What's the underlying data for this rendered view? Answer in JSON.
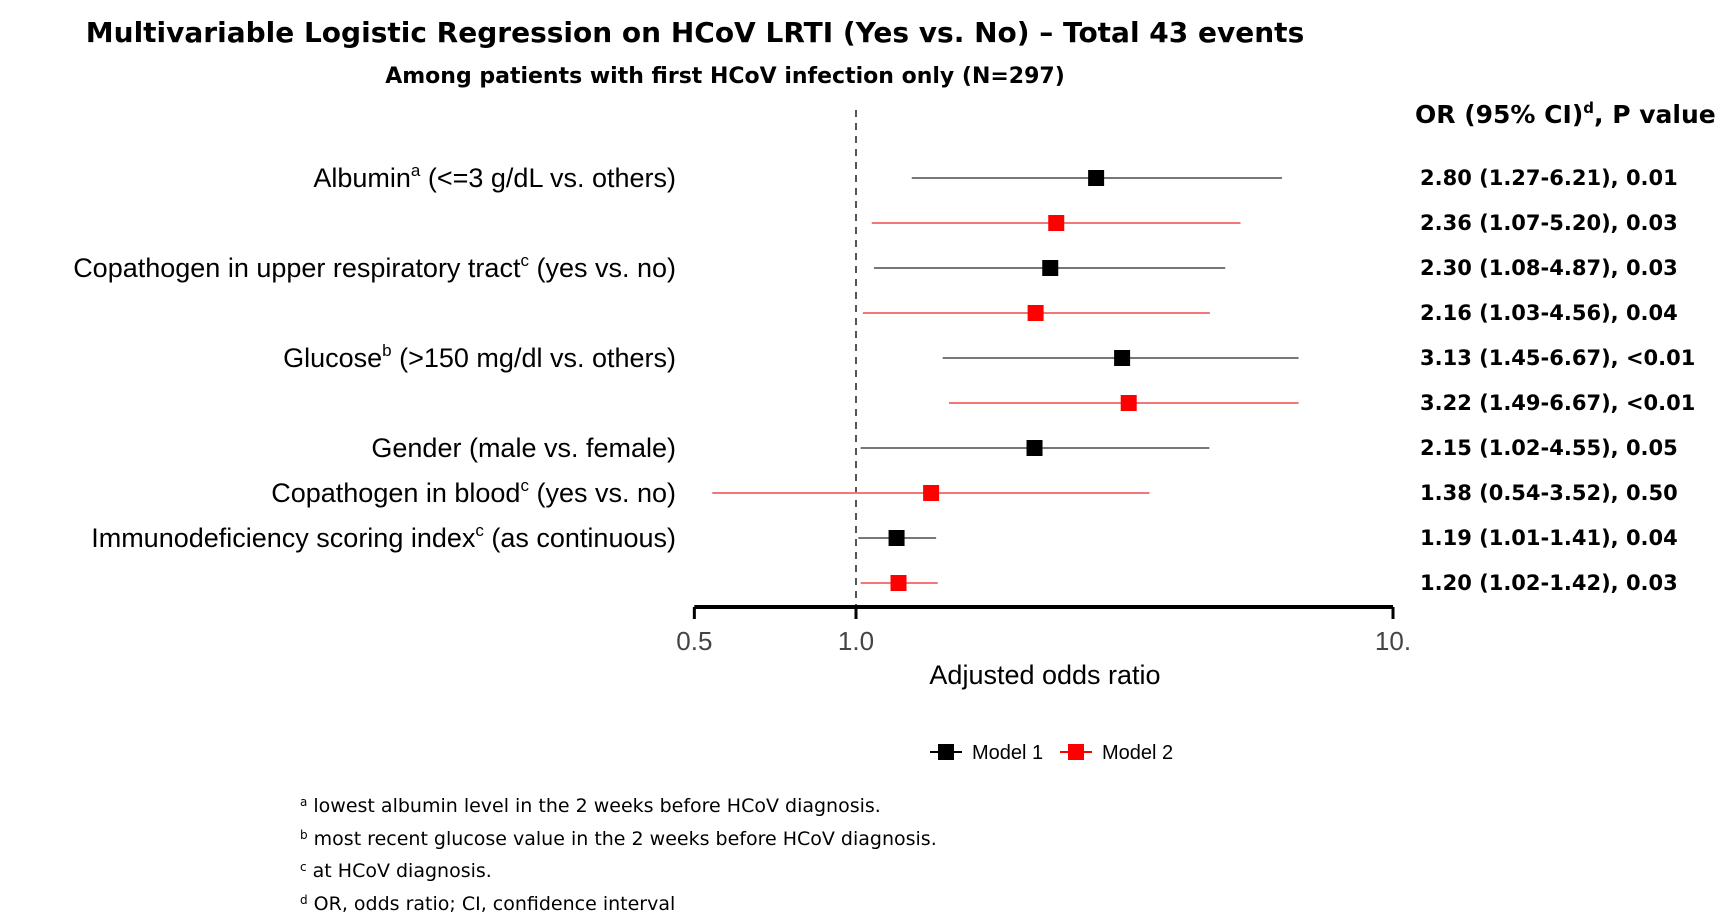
{
  "title": "Multivariable Logistic Regression on HCoV LRTI (Yes vs. No) – Total 43 events",
  "subtitle": "Among patients with first HCoV infection only (N=297)",
  "or_header": {
    "main": "OR (95% CI)",
    "sup": "d",
    "tail": ", P value"
  },
  "colors": {
    "model1": "#000000",
    "model2": "#ff0000",
    "model1_line": "#777777",
    "model2_line": "#f07878"
  },
  "variables": [
    {
      "name": "Albumin",
      "sup": "a",
      "rest": " (<=3 g/dL vs. others)"
    },
    {
      "name": "Copathogen in upper respiratory tract",
      "sup": "c",
      "rest": " (yes vs. no)"
    },
    {
      "name": "Glucose",
      "sup": "b",
      "rest": " (>150 mg/dl vs. others)"
    },
    {
      "name": "Gender (male vs. female)",
      "sup": "",
      "rest": ""
    },
    {
      "name": "Copathogen in blood",
      "sup": "c",
      "rest": " (yes vs. no)"
    },
    {
      "name": "Immunodeficiency scoring index",
      "sup": "c",
      "rest": " (as continuous)"
    }
  ],
  "chart_data": {
    "type": "forest",
    "xlabel": "Adjusted odds ratio",
    "xscale": "log",
    "xlim": [
      0.5,
      10
    ],
    "xticks": [
      0.5,
      1.0,
      10
    ],
    "xtick_labels": [
      "0.5",
      "1.0",
      "10."
    ],
    "reference_line": 1.0,
    "legend": {
      "position": "bottom",
      "entries": [
        "Model 1",
        "Model 2"
      ]
    },
    "rows": [
      {
        "variable": 0,
        "model": "Model 1",
        "or": 2.8,
        "lo": 1.27,
        "hi": 6.21,
        "label": "2.80 (1.27-6.21), 0.01"
      },
      {
        "variable": 0,
        "model": "Model 2",
        "or": 2.36,
        "lo": 1.07,
        "hi": 5.2,
        "label": "2.36 (1.07-5.20), 0.03"
      },
      {
        "variable": 1,
        "model": "Model 1",
        "or": 2.3,
        "lo": 1.08,
        "hi": 4.87,
        "label": "2.30 (1.08-4.87), 0.03"
      },
      {
        "variable": 1,
        "model": "Model 2",
        "or": 2.16,
        "lo": 1.03,
        "hi": 4.56,
        "label": "2.16 (1.03-4.56), 0.04"
      },
      {
        "variable": 2,
        "model": "Model 1",
        "or": 3.13,
        "lo": 1.45,
        "hi": 6.67,
        "label": "3.13 (1.45-6.67), <0.01"
      },
      {
        "variable": 2,
        "model": "Model 2",
        "or": 3.22,
        "lo": 1.49,
        "hi": 6.67,
        "label": "3.22 (1.49-6.67), <0.01"
      },
      {
        "variable": 3,
        "model": "Model 1",
        "or": 2.15,
        "lo": 1.02,
        "hi": 4.55,
        "label": "2.15 (1.02-4.55), 0.05"
      },
      {
        "variable": 4,
        "model": "Model 2",
        "or": 1.38,
        "lo": 0.54,
        "hi": 3.52,
        "label": "1.38 (0.54-3.52), 0.50"
      },
      {
        "variable": 5,
        "model": "Model 1",
        "or": 1.19,
        "lo": 1.01,
        "hi": 1.41,
        "label": "1.19 (1.01-1.41), 0.04"
      },
      {
        "variable": 5,
        "model": "Model 2",
        "or": 1.2,
        "lo": 1.02,
        "hi": 1.42,
        "label": "1.20 (1.02-1.42), 0.03"
      }
    ]
  },
  "footnotes": [
    {
      "mark": "a",
      "text": " lowest albumin level in the 2 weeks before HCoV diagnosis."
    },
    {
      "mark": "b",
      "text": " most recent glucose value in the 2 weeks before HCoV diagnosis."
    },
    {
      "mark": "c",
      "text": " at HCoV diagnosis."
    },
    {
      "mark": "d",
      "text": " OR, odds ratio; CI, confidence interval"
    }
  ]
}
